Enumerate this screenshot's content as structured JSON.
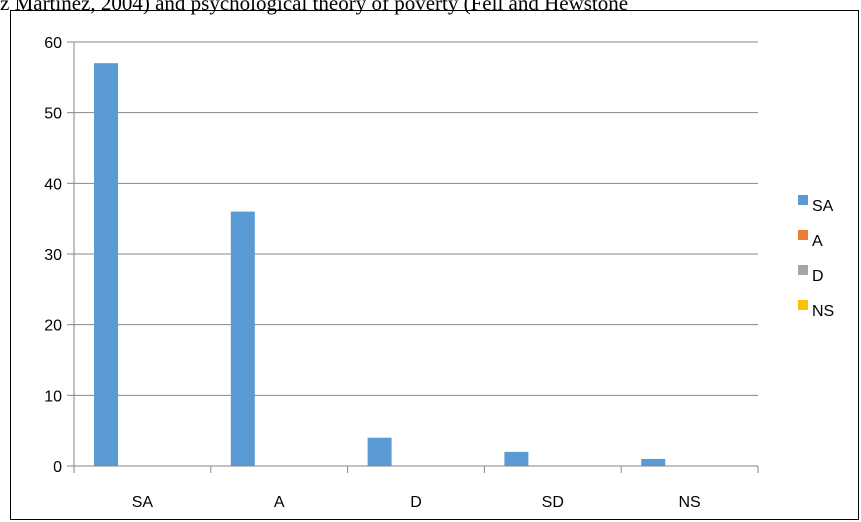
{
  "header_text": "z Martinez, 2004) and psychological theory of poverty (Fell and Hewstone",
  "chart_data": {
    "type": "bar",
    "categories": [
      "SA",
      "A",
      "D",
      "SD",
      "NS"
    ],
    "series": [
      {
        "name": "SA",
        "color": "#5B9BD5",
        "values": [
          57,
          36,
          4,
          2,
          1
        ]
      },
      {
        "name": "A",
        "color": "#ED7D31",
        "values": [
          0,
          0,
          0,
          0,
          0
        ]
      },
      {
        "name": "D",
        "color": "#A5A5A5",
        "values": [
          0,
          0,
          0,
          0,
          0
        ]
      },
      {
        "name": "NS",
        "color": "#FFC000",
        "values": [
          0,
          0,
          0,
          0,
          0
        ]
      }
    ],
    "ylim": [
      0,
      60
    ],
    "yticks": [
      "0",
      "10",
      "20",
      "30",
      "40",
      "50",
      "60"
    ],
    "grid": true,
    "legend_position": "right"
  }
}
